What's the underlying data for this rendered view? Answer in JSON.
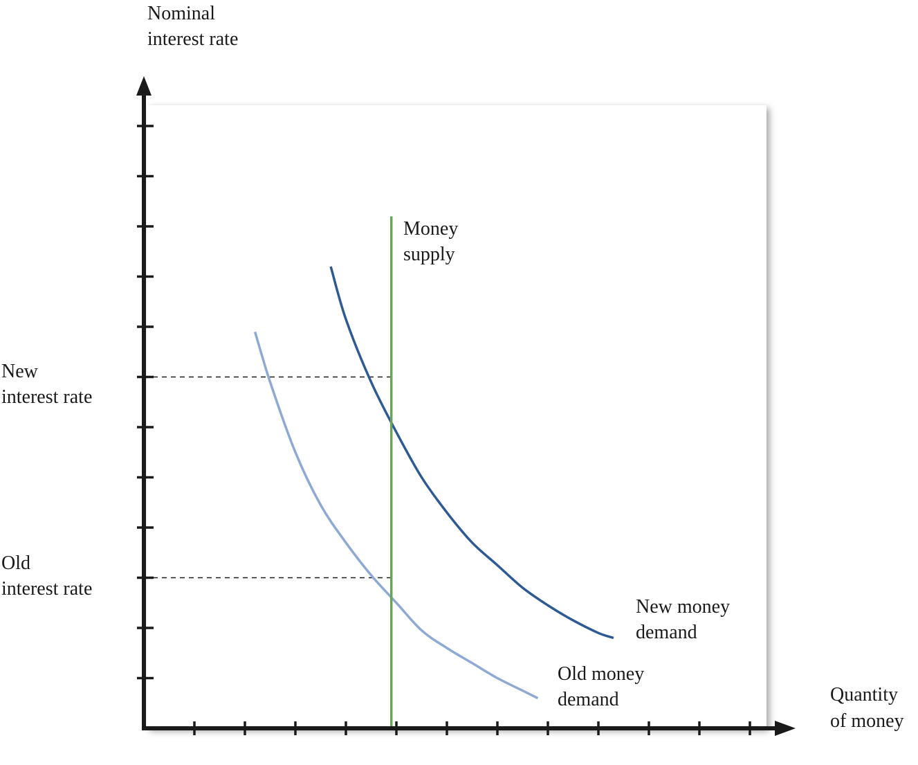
{
  "chart_data": {
    "type": "line",
    "title": "",
    "ylabel": [
      "Nominal",
      "interest rate"
    ],
    "xlabel": [
      "Quantity",
      "of money"
    ],
    "xlim": [
      0,
      12
    ],
    "ylim": [
      0,
      12
    ],
    "x_ticks": [
      1,
      2,
      3,
      4,
      5,
      6,
      7,
      8,
      9,
      10,
      11,
      12
    ],
    "y_ticks": [
      1,
      2,
      3,
      4,
      5,
      6,
      7,
      8,
      9,
      10,
      11,
      12
    ],
    "grid": false,
    "series": [
      {
        "name": [
          "Old money demand"
        ],
        "label_lines": [
          "Old money",
          "demand"
        ],
        "color": "#8eaad4",
        "x": [
          2.2,
          2.5,
          3.0,
          3.5,
          4.0,
          4.5,
          5.0,
          5.5,
          6.0,
          6.5,
          7.0,
          7.5,
          7.8
        ],
        "y": [
          7.9,
          6.9,
          5.5,
          4.45,
          3.7,
          3.05,
          2.5,
          1.95,
          1.6,
          1.3,
          1.0,
          0.75,
          0.6
        ]
      },
      {
        "name": [
          "New money demand"
        ],
        "label_lines": [
          "New money",
          "demand"
        ],
        "color": "#2e5a94",
        "x": [
          3.7,
          4.0,
          4.5,
          5.0,
          5.5,
          6.0,
          6.5,
          7.0,
          7.5,
          8.0,
          8.5,
          9.0,
          9.3
        ],
        "y": [
          9.2,
          8.15,
          6.9,
          5.9,
          5.0,
          4.3,
          3.7,
          3.25,
          2.8,
          2.45,
          2.15,
          1.9,
          1.8
        ]
      }
    ],
    "money_supply": {
      "label_lines": [
        "Money",
        "supply"
      ],
      "color": "#6aa35a",
      "x": 4.9,
      "y_range": [
        0,
        10.2
      ]
    },
    "reference_lines": [
      {
        "label_lines": [
          "New",
          "interest rate"
        ],
        "y": 7.0,
        "x_end": 4.9
      },
      {
        "label_lines": [
          "Old",
          "interest rate"
        ],
        "y": 3.0,
        "x_end": 4.9
      }
    ],
    "plot_background": "#ffffff",
    "shadow_color": "#777777"
  }
}
